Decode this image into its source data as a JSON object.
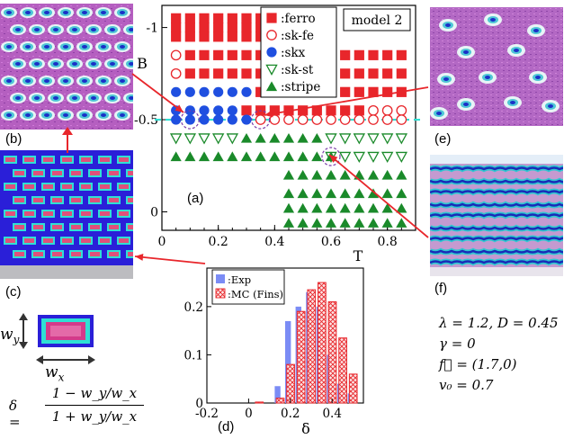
{
  "panel_labels": {
    "a": "(a)",
    "b": "(b)",
    "c": "(c)",
    "d": "(d)",
    "e": "(e)",
    "f": "(f)"
  },
  "colors": {
    "red": "#e8262b",
    "blue": "#1f4fe0",
    "green": "#1a8a2a",
    "cyan": "#2fe0d4",
    "exp": "#7b8cf5",
    "mc": "#e8262b"
  },
  "parameters": {
    "line1": "λ = 1.2, D = 0.45",
    "line2": "γ = 0",
    "line3": "f⃗ = (1.7,0)",
    "line4": "v₀ = 0.7"
  },
  "formula": {
    "lhs": "δ =",
    "numerator": "1 − w_y/w_x",
    "denominator": "1 + w_y/w_x",
    "wy": "w_y",
    "wx": "w_x"
  },
  "chart_data": [
    {
      "type": "scatter",
      "title": "",
      "annotation": "model 2",
      "xlabel": "T",
      "ylabel": "B",
      "xlim": [
        0,
        0.9
      ],
      "ylim": [
        0.1,
        -1.12
      ],
      "xticks": [
        "0",
        "0.2",
        "0.4",
        "0.6",
        "0.8"
      ],
      "yticks": [
        "-1",
        "-0.5",
        "0"
      ],
      "x_values": [
        0.05,
        0.1,
        0.15,
        0.2,
        0.25,
        0.3,
        0.35,
        0.4,
        0.45,
        0.5,
        0.55,
        0.6,
        0.65,
        0.7,
        0.75,
        0.8,
        0.85
      ],
      "reference_line": {
        "B": -0.5,
        "color": "#2fe0d4"
      },
      "legend": [
        "ferro",
        "sk-fe",
        "skx",
        "sk-st",
        "stripe"
      ],
      "legend_labels": [
        ":ferro",
        ":sk-fe",
        ":skx",
        ":sk-st",
        ":stripe"
      ],
      "legend_position": "top-center",
      "series": [
        {
          "name": "ferro",
          "marker": "filled-square",
          "color": "#e8262b",
          "points": [
            [
              0.05,
              -1.05
            ],
            [
              0.1,
              -1.05
            ],
            [
              0.15,
              -1.05
            ],
            [
              0.2,
              -1.05
            ],
            [
              0.25,
              -1.05
            ],
            [
              0.3,
              -1.05
            ],
            [
              0.35,
              -1.05
            ],
            [
              0.05,
              -1
            ],
            [
              0.1,
              -1
            ],
            [
              0.15,
              -1
            ],
            [
              0.2,
              -1
            ],
            [
              0.25,
              -1
            ],
            [
              0.3,
              -1
            ],
            [
              0.35,
              -1
            ],
            [
              0.05,
              -0.95
            ],
            [
              0.1,
              -0.95
            ],
            [
              0.15,
              -0.95
            ],
            [
              0.2,
              -0.95
            ],
            [
              0.25,
              -0.95
            ],
            [
              0.3,
              -0.95
            ],
            [
              0.35,
              -0.95
            ],
            [
              0.1,
              -0.85
            ],
            [
              0.15,
              -0.85
            ],
            [
              0.2,
              -0.85
            ],
            [
              0.25,
              -0.85
            ],
            [
              0.3,
              -0.85
            ],
            [
              0.35,
              -0.85
            ],
            [
              0.4,
              -0.85
            ],
            [
              0.45,
              -0.85
            ],
            [
              0.5,
              -0.85
            ],
            [
              0.55,
              -0.85
            ],
            [
              0.6,
              -0.85
            ],
            [
              0.65,
              -0.85
            ],
            [
              0.7,
              -0.85
            ],
            [
              0.75,
              -0.85
            ],
            [
              0.8,
              -0.85
            ],
            [
              0.85,
              -0.85
            ],
            [
              0.1,
              -0.75
            ],
            [
              0.15,
              -0.75
            ],
            [
              0.2,
              -0.75
            ],
            [
              0.25,
              -0.75
            ],
            [
              0.3,
              -0.75
            ],
            [
              0.35,
              -0.75
            ],
            [
              0.4,
              -0.75
            ],
            [
              0.45,
              -0.75
            ],
            [
              0.5,
              -0.75
            ],
            [
              0.55,
              -0.75
            ],
            [
              0.6,
              -0.75
            ],
            [
              0.65,
              -0.75
            ],
            [
              0.7,
              -0.75
            ],
            [
              0.75,
              -0.75
            ],
            [
              0.8,
              -0.75
            ],
            [
              0.85,
              -0.75
            ],
            [
              0.35,
              -0.65
            ],
            [
              0.4,
              -0.65
            ],
            [
              0.45,
              -0.65
            ],
            [
              0.5,
              -0.65
            ],
            [
              0.55,
              -0.65
            ],
            [
              0.6,
              -0.65
            ],
            [
              0.65,
              -0.65
            ],
            [
              0.7,
              -0.65
            ],
            [
              0.75,
              -0.65
            ],
            [
              0.8,
              -0.65
            ],
            [
              0.85,
              -0.65
            ],
            [
              0.3,
              -0.55
            ],
            [
              0.35,
              -0.55
            ],
            [
              0.4,
              -0.55
            ],
            [
              0.45,
              -0.55
            ],
            [
              0.5,
              -0.55
            ],
            [
              0.55,
              -0.55
            ],
            [
              0.6,
              -0.55
            ],
            [
              0.65,
              -0.55
            ],
            [
              0.7,
              -0.55
            ]
          ]
        },
        {
          "name": "sk-fe",
          "marker": "open-circle",
          "color": "#e8262b",
          "points": [
            [
              0.05,
              -0.85
            ],
            [
              0.05,
              -0.75
            ],
            [
              0.75,
              -0.55
            ],
            [
              0.8,
              -0.55
            ],
            [
              0.85,
              -0.55
            ],
            [
              0.35,
              -0.5
            ],
            [
              0.4,
              -0.5
            ],
            [
              0.45,
              -0.5
            ],
            [
              0.5,
              -0.5
            ],
            [
              0.55,
              -0.5
            ],
            [
              0.6,
              -0.5
            ],
            [
              0.65,
              -0.5
            ],
            [
              0.7,
              -0.5
            ],
            [
              0.75,
              -0.5
            ],
            [
              0.8,
              -0.5
            ],
            [
              0.85,
              -0.5
            ]
          ]
        },
        {
          "name": "skx",
          "marker": "filled-circle",
          "color": "#1f4fe0",
          "points": [
            [
              0.05,
              -0.65
            ],
            [
              0.1,
              -0.65
            ],
            [
              0.15,
              -0.65
            ],
            [
              0.2,
              -0.65
            ],
            [
              0.25,
              -0.65
            ],
            [
              0.3,
              -0.65
            ],
            [
              0.05,
              -0.55
            ],
            [
              0.1,
              -0.55
            ],
            [
              0.15,
              -0.55
            ],
            [
              0.2,
              -0.55
            ],
            [
              0.25,
              -0.55
            ],
            [
              0.05,
              -0.5
            ],
            [
              0.1,
              -0.5
            ],
            [
              0.15,
              -0.5
            ],
            [
              0.2,
              -0.5
            ],
            [
              0.25,
              -0.5
            ],
            [
              0.3,
              -0.5
            ]
          ]
        },
        {
          "name": "sk-st",
          "marker": "open-triangle-down",
          "color": "#1a8a2a",
          "points": [
            [
              0.05,
              -0.4
            ],
            [
              0.1,
              -0.4
            ],
            [
              0.15,
              -0.4
            ],
            [
              0.2,
              -0.4
            ],
            [
              0.25,
              -0.4
            ],
            [
              0.6,
              -0.4
            ],
            [
              0.65,
              -0.4
            ],
            [
              0.7,
              -0.4
            ],
            [
              0.75,
              -0.4
            ],
            [
              0.8,
              -0.4
            ],
            [
              0.85,
              -0.4
            ],
            [
              0.6,
              -0.3
            ],
            [
              0.65,
              -0.3
            ],
            [
              0.7,
              -0.3
            ],
            [
              0.75,
              -0.3
            ],
            [
              0.8,
              -0.3
            ],
            [
              0.85,
              -0.3
            ]
          ]
        },
        {
          "name": "stripe",
          "marker": "filled-triangle-up",
          "color": "#1a8a2a",
          "points": [
            [
              0.3,
              -0.4
            ],
            [
              0.35,
              -0.4
            ],
            [
              0.4,
              -0.4
            ],
            [
              0.45,
              -0.4
            ],
            [
              0.5,
              -0.4
            ],
            [
              0.55,
              -0.4
            ],
            [
              0.05,
              -0.3
            ],
            [
              0.1,
              -0.3
            ],
            [
              0.15,
              -0.3
            ],
            [
              0.2,
              -0.3
            ],
            [
              0.25,
              -0.3
            ],
            [
              0.3,
              -0.3
            ],
            [
              0.35,
              -0.3
            ],
            [
              0.4,
              -0.3
            ],
            [
              0.45,
              -0.3
            ],
            [
              0.5,
              -0.3
            ],
            [
              0.55,
              -0.3
            ],
            [
              0.6,
              -0.3
            ],
            [
              0.45,
              -0.2
            ],
            [
              0.5,
              -0.2
            ],
            [
              0.55,
              -0.2
            ],
            [
              0.6,
              -0.2
            ],
            [
              0.65,
              -0.2
            ],
            [
              0.7,
              -0.2
            ],
            [
              0.75,
              -0.2
            ],
            [
              0.8,
              -0.2
            ],
            [
              0.85,
              -0.2
            ],
            [
              0.45,
              -0.1
            ],
            [
              0.5,
              -0.1
            ],
            [
              0.55,
              -0.1
            ],
            [
              0.6,
              -0.1
            ],
            [
              0.65,
              -0.1
            ],
            [
              0.7,
              -0.1
            ],
            [
              0.75,
              -0.1
            ],
            [
              0.8,
              -0.1
            ],
            [
              0.85,
              -0.1
            ],
            [
              0.45,
              -0.02
            ],
            [
              0.5,
              -0.02
            ],
            [
              0.55,
              -0.02
            ],
            [
              0.6,
              -0.02
            ],
            [
              0.65,
              -0.02
            ],
            [
              0.7,
              -0.02
            ],
            [
              0.75,
              -0.02
            ],
            [
              0.8,
              -0.02
            ],
            [
              0.85,
              -0.02
            ],
            [
              0.45,
              0.06
            ],
            [
              0.5,
              0.06
            ],
            [
              0.55,
              0.06
            ],
            [
              0.6,
              0.06
            ],
            [
              0.65,
              0.06
            ],
            [
              0.7,
              0.06
            ],
            [
              0.75,
              0.06
            ],
            [
              0.8,
              0.06
            ],
            [
              0.85,
              0.06
            ]
          ]
        }
      ],
      "highlighted_points": [
        [
          0.1,
          -0.5
        ],
        [
          0.35,
          -0.5
        ],
        [
          0.6,
          -0.3
        ]
      ]
    },
    {
      "type": "bar",
      "title": "",
      "xlabel": "δ",
      "ylabel": "",
      "xlim": [
        -0.2,
        0.55
      ],
      "ylim": [
        0,
        0.28
      ],
      "xticks": [
        "-0.2",
        "0",
        "0.2",
        "0.4"
      ],
      "yticks": [
        "0",
        "0.1",
        "0.2"
      ],
      "legend_labels": [
        ":Exp",
        ":MC (Fins)"
      ],
      "legend_position": "top-left",
      "bin_width": 0.05,
      "bin_centers": [
        0.05,
        0.1,
        0.15,
        0.2,
        0.25,
        0.3,
        0.35,
        0.4,
        0.45,
        0.5
      ],
      "series": [
        {
          "name": "Exp",
          "values": [
            0.0,
            0.0,
            0.035,
            0.17,
            0.2,
            0.23,
            0.2,
            0.1,
            0.04,
            0.02
          ]
        },
        {
          "name": "MC (Fins)",
          "values": [
            0.002,
            0.0,
            0.01,
            0.08,
            0.19,
            0.235,
            0.25,
            0.21,
            0.135,
            0.06
          ]
        }
      ]
    }
  ]
}
